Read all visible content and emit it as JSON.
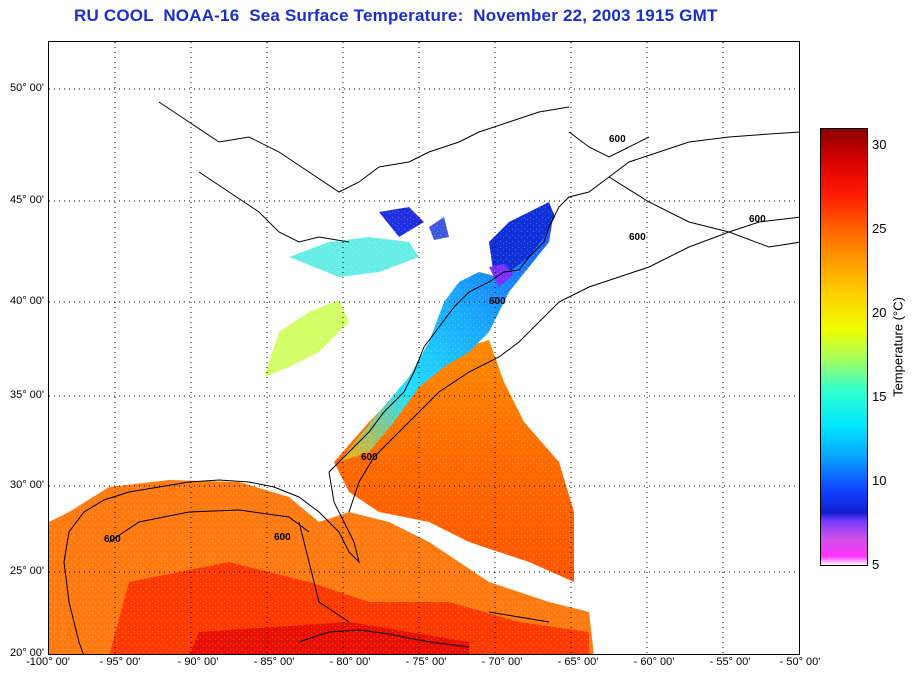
{
  "title": "RU COOL  NOAA-16  Sea Surface Temperature:  November 22, 2003 1915 GMT",
  "map": {
    "lat_labels": [
      {
        "text": "50° 00'"
      },
      {
        "text": "45° 00'"
      },
      {
        "text": "40° 00'"
      },
      {
        "text": "35° 00'"
      },
      {
        "text": "30° 00'"
      },
      {
        "text": "25° 00'"
      },
      {
        "text": "20° 00'"
      }
    ],
    "lon_labels": [
      {
        "text": "-100° 00'"
      },
      {
        "text": "- 95° 00'"
      },
      {
        "text": "- 90° 00'"
      },
      {
        "text": "- 85° 00'"
      },
      {
        "text": "- 80° 00'"
      },
      {
        "text": "- 75° 00'"
      },
      {
        "text": "- 70° 00'"
      },
      {
        "text": "- 65° 00'"
      },
      {
        "text": "- 60° 00'"
      },
      {
        "text": "- 55° 00'"
      },
      {
        "text": "- 50° 00'"
      }
    ],
    "isobath_label": "600"
  },
  "colorbar": {
    "title": "Temperature (°C)",
    "ticks": [
      "30",
      "25",
      "20",
      "15",
      "10",
      "5"
    ],
    "range": [
      5,
      31
    ]
  }
}
